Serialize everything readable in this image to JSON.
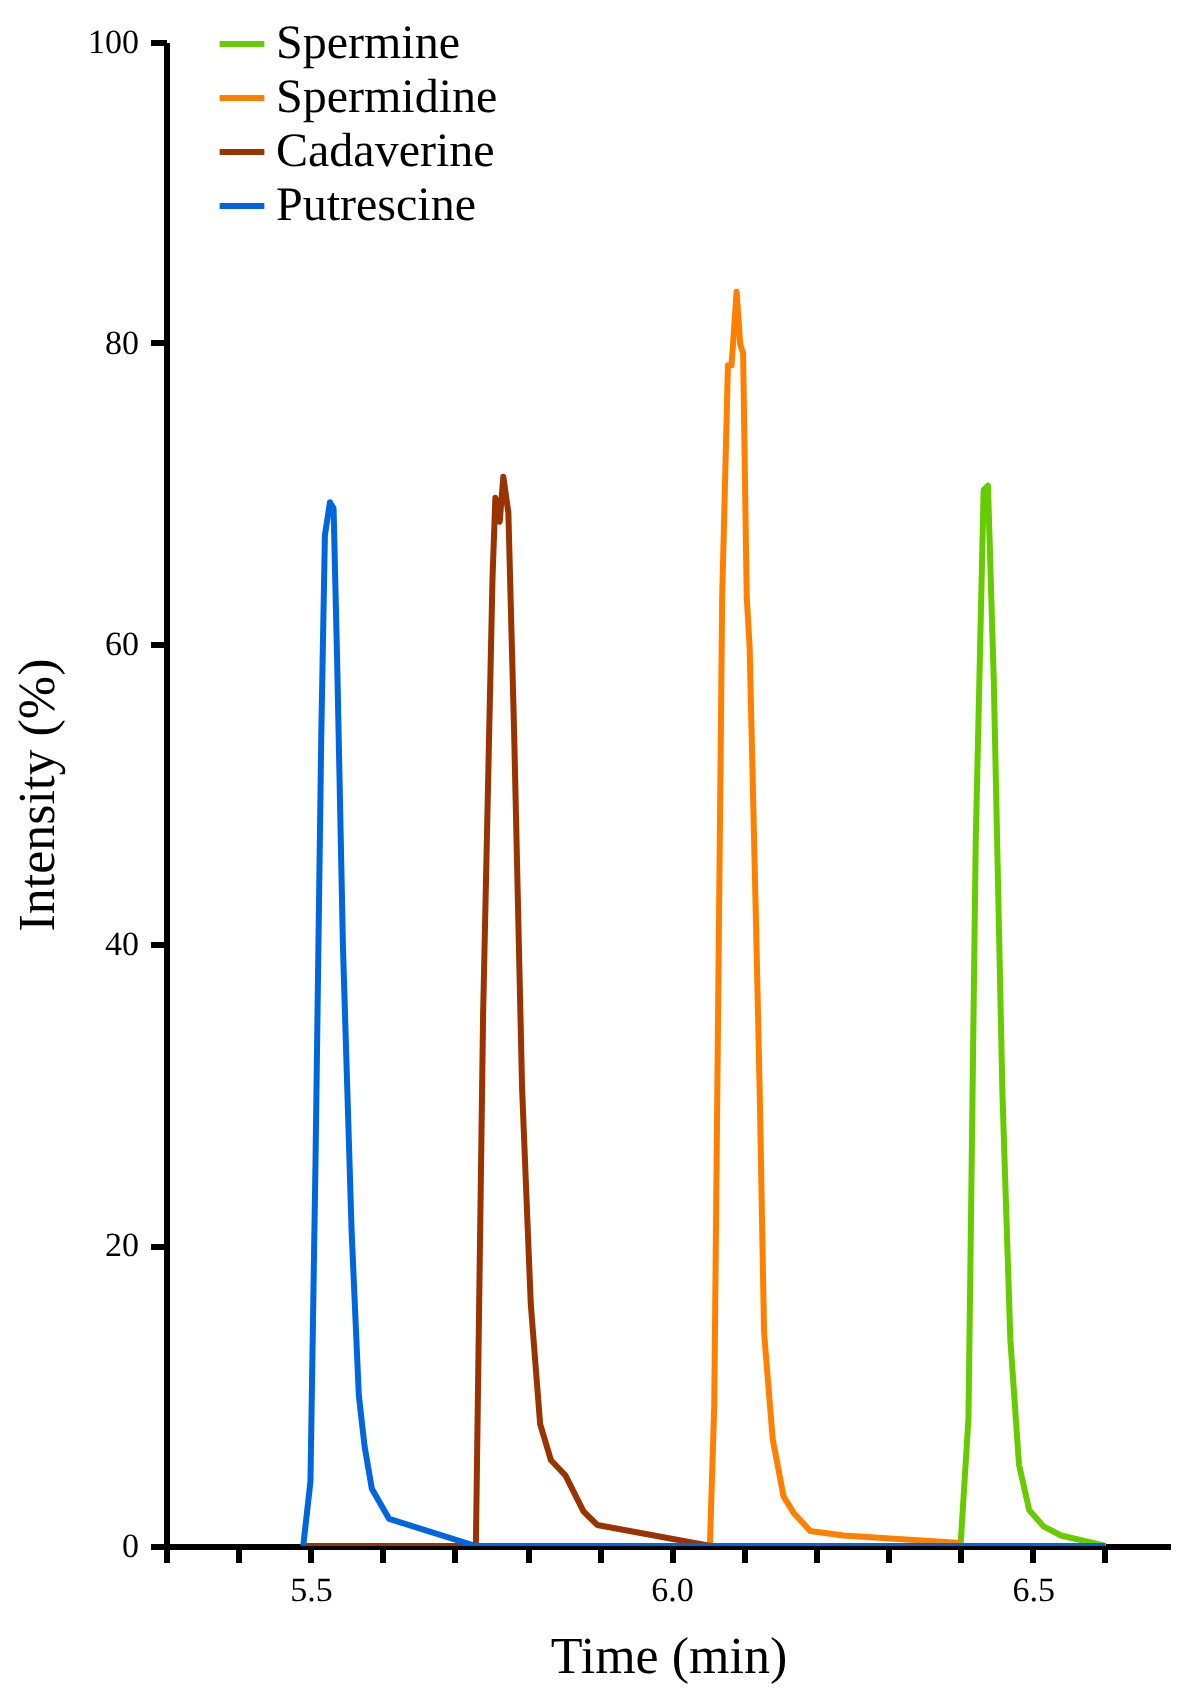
{
  "chart_data": {
    "type": "line",
    "xlabel": "Time (min)",
    "ylabel": "Intensity (%)",
    "xlim": [
      5.3,
      6.69
    ],
    "ylim": [
      0,
      100
    ],
    "xticks": [
      {
        "value": 5.3,
        "label": null
      },
      {
        "value": 5.4,
        "label": null
      },
      5.5,
      {
        "value": 5.6,
        "label": null
      },
      {
        "value": 5.7,
        "label": null
      },
      {
        "value": 5.8,
        "label": null
      },
      {
        "value": 5.9,
        "label": null
      },
      {
        "value": 6.0,
        "label": "6.0"
      },
      {
        "value": 6.1,
        "label": null
      },
      {
        "value": 6.2,
        "label": null
      },
      {
        "value": 6.3,
        "label": null
      },
      {
        "value": 6.4,
        "label": null
      },
      6.5,
      {
        "value": 6.6,
        "label": null
      }
    ],
    "yticks": [
      0,
      20,
      40,
      60,
      80,
      100
    ],
    "grid": false,
    "legend": "top left",
    "marker": "none",
    "line_style": "solid",
    "series": [
      {
        "name": "Spermine",
        "color": "#66cc00",
        "x": [
          6.4,
          6.411,
          6.421,
          6.432,
          6.438,
          6.446,
          6.458,
          6.469,
          6.481,
          6.495,
          6.515,
          6.539,
          6.601
        ],
        "values": [
          0,
          8.5,
          46.7,
          70.2,
          70.5,
          57.6,
          30.1,
          13.7,
          5.4,
          2.4,
          1.3,
          0.7,
          0
        ]
      },
      {
        "name": "Spermidine",
        "color": "#ff8000",
        "x": [
          6.053,
          6.059,
          6.07,
          6.078,
          6.083,
          6.09,
          6.095,
          6.099,
          6.104,
          6.108,
          6.117,
          6.122,
          6.128,
          6.14,
          6.155,
          6.169,
          6.192,
          6.238,
          6.4
        ],
        "values": [
          0,
          9.3,
          63.1,
          78.5,
          78.5,
          83.4,
          79.9,
          79.3,
          63.1,
          59.8,
          41.1,
          30.1,
          14.2,
          7.1,
          3.3,
          2.2,
          1.0,
          0.7,
          0.2
        ]
      },
      {
        "name": "Cadaverine",
        "color": "#993300",
        "x": [
          5.49,
          5.729,
          5.739,
          5.752,
          5.756,
          5.762,
          5.767,
          5.774,
          5.782,
          5.793,
          5.805,
          5.818,
          5.833,
          5.853,
          5.878,
          5.897,
          6.054
        ],
        "values": [
          0,
          0,
          35.3,
          64.3,
          69.7,
          68.1,
          71.1,
          68.7,
          54,
          30.4,
          16.1,
          8.1,
          5.7,
          4.7,
          2.3,
          1.4,
          0
        ]
      },
      {
        "name": "Putrescine",
        "color": "#0066dd",
        "x": [
          5.49,
          5.5,
          5.507,
          5.515,
          5.52,
          5.527,
          5.532,
          5.537,
          5.545,
          5.557,
          5.567,
          5.575,
          5.585,
          5.609,
          5.729,
          6.6
        ],
        "values": [
          0,
          4.3,
          25.6,
          54,
          67.2,
          69.4,
          69,
          58.7,
          39.8,
          20.9,
          10,
          6.6,
          3.8,
          1.8,
          0,
          0
        ]
      }
    ]
  }
}
